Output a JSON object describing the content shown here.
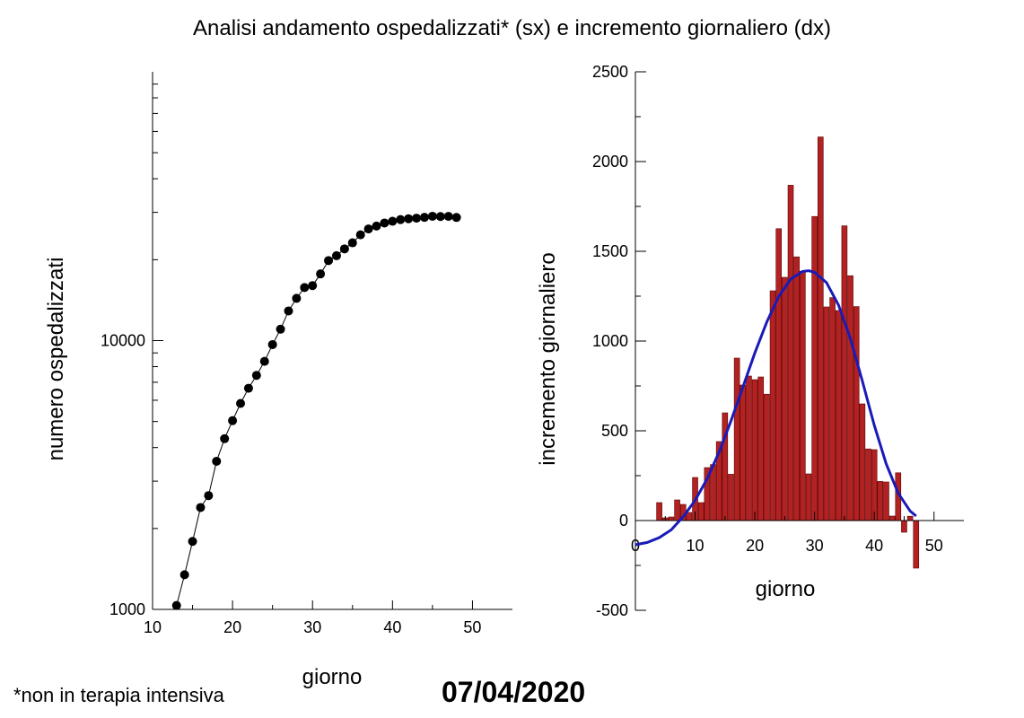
{
  "header": {
    "title": "Analisi andamento ospedalizzati* (sx) e incremento giornaliero (dx)"
  },
  "footer": {
    "footnote": "*non in terapia intensiva",
    "date": "07/04/2020"
  },
  "chart_data": [
    {
      "type": "scatter",
      "xlabel": "giorno",
      "ylabel": "numero ospedalizzati",
      "xlim": [
        10,
        55
      ],
      "ylim": [
        1000,
        100000
      ],
      "yscale": "log",
      "xticks": [
        10,
        20,
        30,
        40,
        50
      ],
      "yticks": [
        1000,
        10000
      ],
      "ytick_labels": [
        "1000",
        "10000"
      ],
      "marker_color": "#000000",
      "line_color": "#000000",
      "x": [
        13,
        14,
        15,
        16,
        17,
        18,
        19,
        20,
        21,
        22,
        23,
        24,
        25,
        26,
        27,
        28,
        29,
        30,
        31,
        32,
        33,
        34,
        35,
        36,
        37,
        38,
        39,
        40,
        41,
        42,
        43,
        44,
        45,
        46,
        47,
        48
      ],
      "y": [
        1034,
        1346,
        1790,
        2394,
        2651,
        3557,
        4316,
        5038,
        5838,
        6650,
        7426,
        8372,
        9663,
        11025,
        12894,
        14363,
        15757,
        16020,
        17708,
        19846,
        20692,
        21937,
        23112,
        24753,
        26029,
        26676,
        27386,
        27795,
        28192,
        28403,
        28540,
        28741,
        29010,
        28949,
        28976,
        28718
      ]
    },
    {
      "type": "bar",
      "xlabel": "giorno",
      "ylabel": "incremento giornaliero",
      "xlim": [
        0,
        55
      ],
      "ylim": [
        -500,
        2500
      ],
      "xticks": [
        0,
        10,
        20,
        30,
        40,
        50
      ],
      "yticks": [
        -500,
        0,
        500,
        1000,
        1500,
        2000,
        2500
      ],
      "bar_color": "#b22222",
      "curve_color": "#1a1ab8",
      "x": [
        4,
        5,
        6,
        7,
        8,
        9,
        10,
        11,
        12,
        13,
        14,
        15,
        16,
        17,
        18,
        19,
        20,
        21,
        22,
        23,
        24,
        25,
        26,
        27,
        28,
        29,
        30,
        31,
        32,
        33,
        34,
        35,
        36,
        37,
        38,
        39,
        40,
        41,
        42,
        43,
        44,
        45,
        46,
        47
      ],
      "values": [
        100,
        15,
        20,
        115,
        90,
        45,
        240,
        100,
        295,
        312,
        440,
        600,
        258,
        905,
        755,
        805,
        785,
        800,
        704,
        1280,
        1626,
        1355,
        1868,
        1469,
        1389,
        260,
        1694,
        2137,
        1190,
        1242,
        1170,
        1642,
        1364,
        1192,
        650,
        399,
        395,
        218,
        215,
        25,
        266,
        -65,
        24,
        -265
      ],
      "fit_curve": {
        "x": [
          0,
          2,
          4,
          6,
          8,
          10,
          12,
          14,
          16,
          18,
          20,
          22,
          24,
          26,
          28,
          29,
          30,
          32,
          34,
          36,
          38,
          40,
          42,
          44,
          46,
          47
        ],
        "y": [
          -135,
          -122,
          -95,
          -52,
          21,
          112,
          232,
          381,
          555,
          744,
          934,
          1106,
          1248,
          1345,
          1388,
          1392,
          1383,
          1326,
          1201,
          1013,
          777,
          530,
          315,
          153,
          53,
          25
        ]
      }
    }
  ]
}
